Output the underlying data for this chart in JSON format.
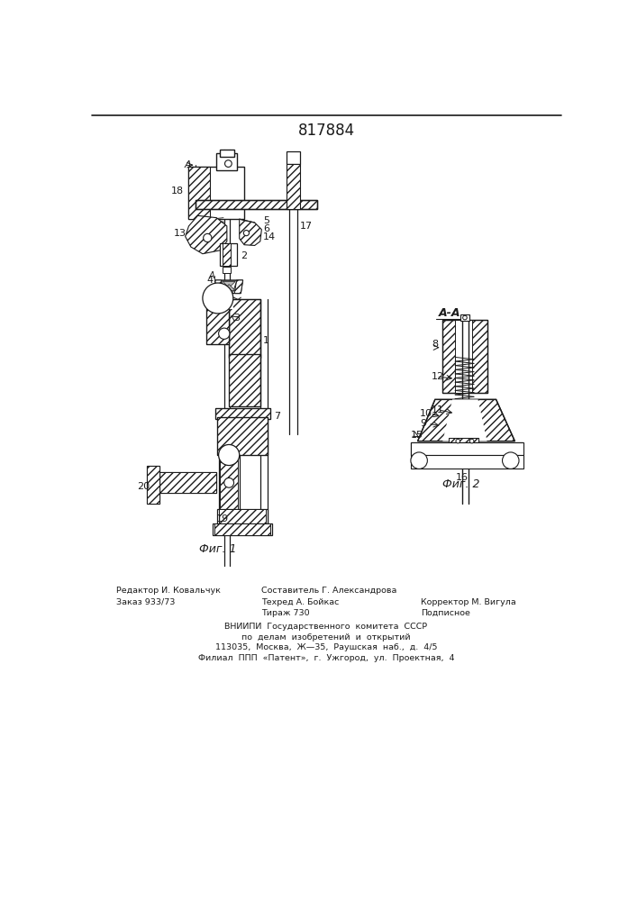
{
  "title": "817884",
  "fig1_label": "Фиг. 1",
  "fig2_label": "Фиг. 2",
  "section_label": "А-А",
  "background_color": "#ffffff",
  "line_color": "#1a1a1a",
  "footer_left": [
    "Редактор И. Ковальчук",
    "Заказ 933/73"
  ],
  "footer_mid": [
    "Составитель Г. Александрова",
    "Техред А. Бойкас",
    "Тираж 730"
  ],
  "footer_right": [
    "",
    "Корректор М. Вигула",
    "Подписное"
  ],
  "footer_center": [
    "ВНИИПИ  Государственного  комитета  СССР",
    "по  делам  изобретений  и  открытий",
    "113035,  Москва,  Ж—35,  Раушская  наб.,  д.  4/5",
    "Филиал  ППП  «Патент»,  г.  Ужгород,  ул.  Проектная,  4"
  ]
}
